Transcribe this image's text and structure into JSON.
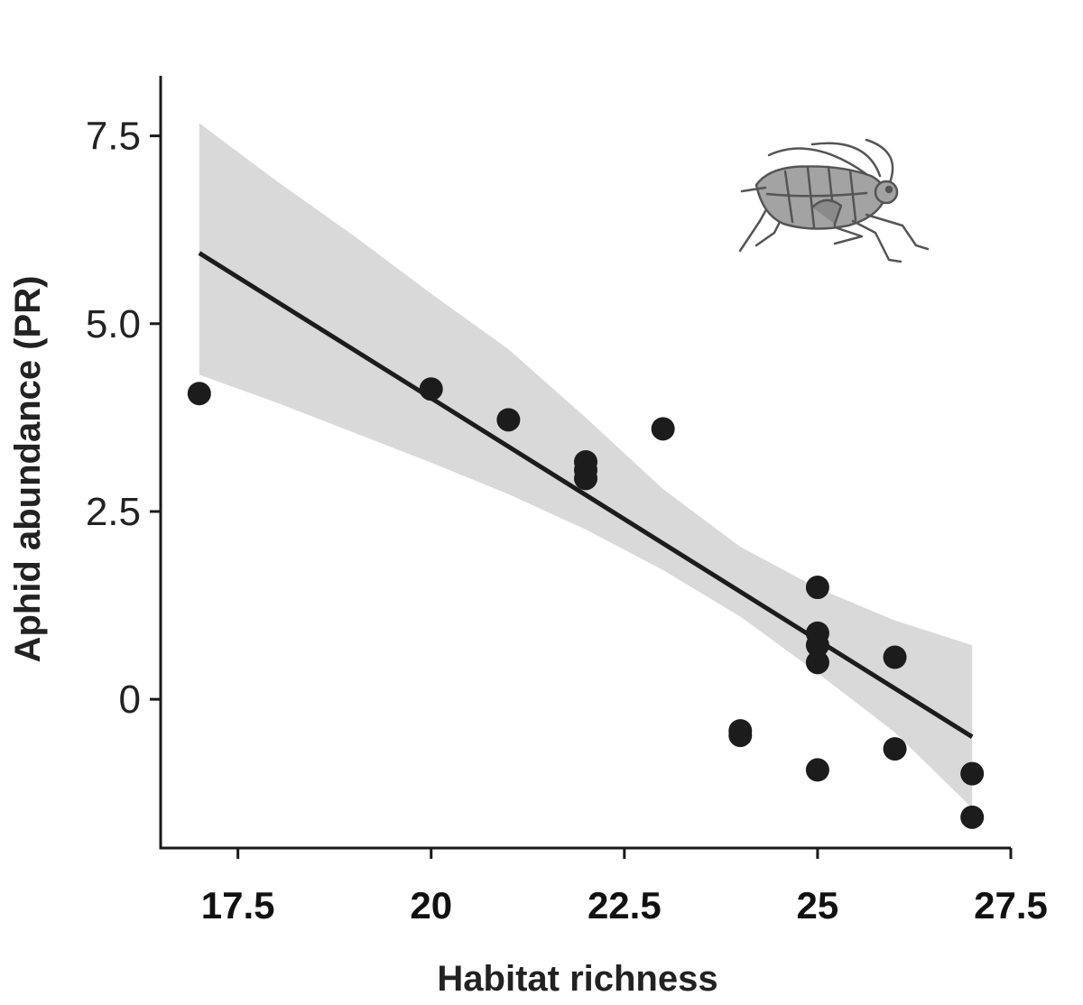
{
  "chart_data": {
    "type": "scatter",
    "xlabel": "Habitat richness",
    "ylabel": "Aphid abundance (PR)",
    "xlim": [
      16.5,
      27.5
    ],
    "ylim": [
      -1.98,
      8.3
    ],
    "x_ticks": [
      {
        "value": 17.5,
        "label": "17.5"
      },
      {
        "value": 20,
        "label": "20"
      },
      {
        "value": 22.5,
        "label": "22.5"
      },
      {
        "value": 25,
        "label": "25"
      },
      {
        "value": 27.5,
        "label": "27.5"
      }
    ],
    "y_ticks": [
      {
        "value": 0,
        "label": "0"
      },
      {
        "value": 2.5,
        "label": "2.5"
      },
      {
        "value": 5.0,
        "label": "5.0"
      },
      {
        "value": 7.5,
        "label": "7.5"
      }
    ],
    "points": [
      {
        "x": 17,
        "y": 4.07
      },
      {
        "x": 20,
        "y": 4.13
      },
      {
        "x": 21,
        "y": 3.72
      },
      {
        "x": 22,
        "y": 3.16
      },
      {
        "x": 22,
        "y": 3.05
      },
      {
        "x": 22,
        "y": 2.94
      },
      {
        "x": 23,
        "y": 3.6
      },
      {
        "x": 24,
        "y": -0.42
      },
      {
        "x": 24,
        "y": -0.48
      },
      {
        "x": 25,
        "y": 1.49
      },
      {
        "x": 25,
        "y": 0.88
      },
      {
        "x": 25,
        "y": 0.72
      },
      {
        "x": 25,
        "y": 0.49
      },
      {
        "x": 25,
        "y": -0.94
      },
      {
        "x": 26,
        "y": 0.56
      },
      {
        "x": 26,
        "y": -0.66
      },
      {
        "x": 27,
        "y": -0.99
      },
      {
        "x": 27,
        "y": -1.57
      }
    ],
    "fit_line": {
      "x": [
        17,
        27
      ],
      "y": [
        5.94,
        -0.5
      ]
    },
    "confidence_band": {
      "x": [
        17,
        18,
        19,
        20,
        21,
        22,
        23,
        24,
        25,
        26,
        27
      ],
      "lower": [
        4.32,
        3.95,
        3.55,
        3.15,
        2.73,
        2.26,
        1.72,
        1.1,
        0.35,
        -0.44,
        -1.45
      ],
      "upper": [
        7.67,
        6.9,
        6.17,
        5.4,
        4.66,
        3.75,
        2.8,
        2.03,
        1.48,
        1.05,
        0.72
      ]
    },
    "grid": false,
    "legend": "none",
    "colors": {
      "points": "#1c1c1c",
      "fit_line": "#1c1c1c",
      "band": "#d9d9d9",
      "axis": "#1a1a1a",
      "illustration": "#9c9c9c"
    },
    "illustration_icon": "aphid-icon"
  }
}
